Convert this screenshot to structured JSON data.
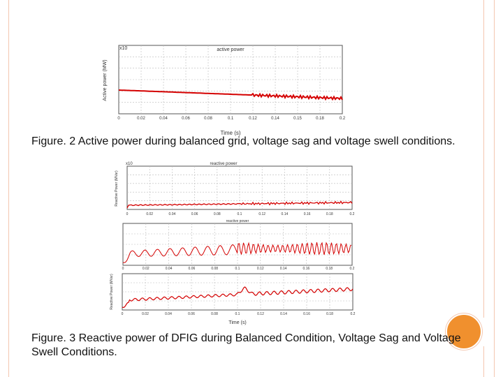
{
  "slide": {
    "accent_color": "#f0902e",
    "border_color": "#f4c7b0"
  },
  "figure2": {
    "caption": "Figure. 2 Active power during balanced grid, voltage sag and voltage swell conditions.",
    "chart": {
      "type": "line",
      "title": "active power",
      "xlabel": "Time (s)",
      "ylabel": "Active power (MW)",
      "y_exponent": "x10",
      "x_ticks": [
        "0",
        "0.02",
        "0.04",
        "0.06",
        "0.08",
        "0.1",
        "0.12",
        "0.14",
        "0.15",
        "0.18",
        "0.2"
      ],
      "xlim": [
        0,
        0.2
      ],
      "grid": true,
      "line_color": "#d40000"
    }
  },
  "figure3": {
    "caption": "Figure. 3 Reactive power of DFIG during Balanced Condition, Voltage Sag and Voltage Swell Conditions.",
    "xlabel": "Time (s)",
    "charts": [
      {
        "type": "line",
        "title": "reactive power",
        "ylabel": "Reactive Power (MVar)",
        "y_exponent": "x10",
        "x_ticks": [
          "0",
          "0.02",
          "0.04",
          "0.06",
          "0.08",
          "0.1",
          "0.12",
          "0.14",
          "0.16",
          "0.18",
          "0.2"
        ],
        "grid": true
      },
      {
        "type": "line",
        "title": "reactive power",
        "ylabel": "",
        "x_ticks": [
          "0",
          "0.02",
          "0.04",
          "0.06",
          "0.08",
          "0.1",
          "0.12",
          "0.14",
          "0.16",
          "0.18",
          "0.2"
        ],
        "grid": true
      },
      {
        "type": "line",
        "title": "",
        "ylabel": "Reactive Power (MVar)",
        "x_ticks": [
          "0",
          "0.02",
          "0.04",
          "0.06",
          "0.08",
          "0.1",
          "0.12",
          "0.14",
          "0.16",
          "0.18",
          "0.2"
        ],
        "grid": true
      }
    ]
  }
}
